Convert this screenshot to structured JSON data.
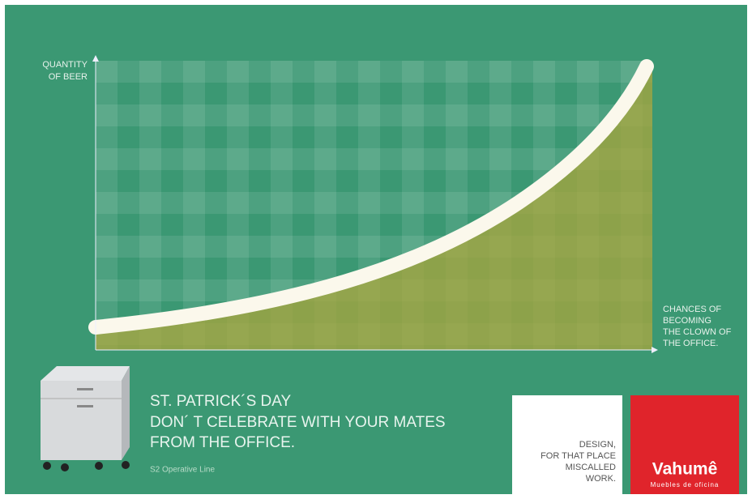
{
  "chart": {
    "y_axis_label": [
      "QUANTITY",
      "OF BEER"
    ],
    "x_axis_label": [
      "CHANCES OF",
      "BECOMING",
      "THE CLOWN OF",
      "THE OFFICE."
    ]
  },
  "headline": [
    "ST. PATRICK´S DAY",
    "DON´ T CELEBRATE WITH YOUR MATES",
    "FROM THE OFFICE."
  ],
  "product_line": "S2 Operative Line",
  "tagline": [
    "DESIGN,",
    "FOR THAT PLACE",
    "MISCALLED",
    "WORK."
  ],
  "brand": {
    "name": "Vahumê",
    "subtitle": "Muebles de oficina"
  }
}
